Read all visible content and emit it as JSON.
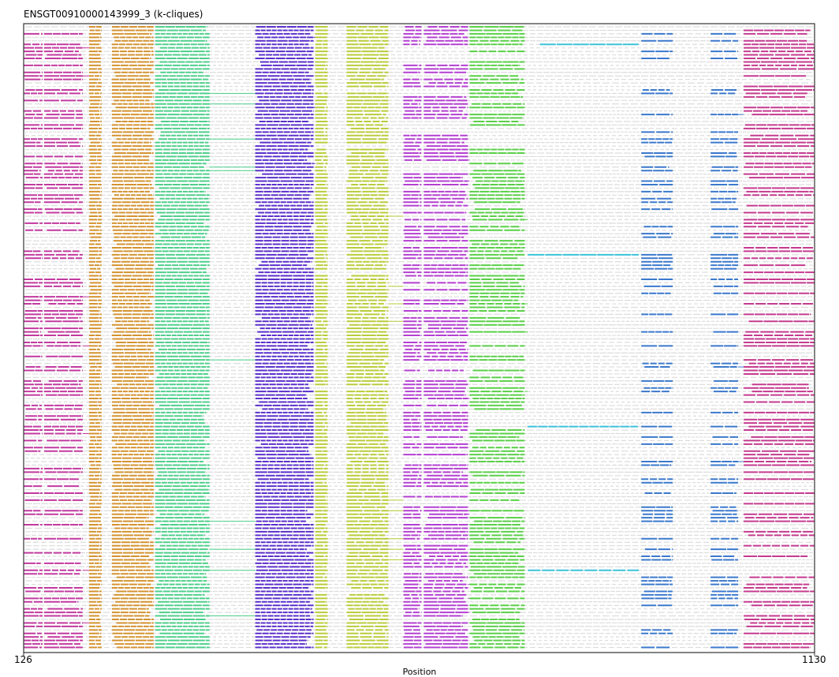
{
  "chart_data": {
    "type": "alignment-track",
    "title": "ENSGT00910000143999_3 (k-cliques)",
    "xlabel": "Position",
    "x_range": [
      126,
      1130
    ],
    "x_ticks": [
      "126",
      "1130"
    ],
    "grid": false,
    "legend": "none",
    "background_track_color": "#dcdcdc",
    "n_sequences": 178,
    "clusters": [
      {
        "start": 126,
        "end": 201,
        "color": "#c2399f",
        "coverage": 0.55,
        "blocks": [
          [
            126,
            150
          ],
          [
            152,
            201
          ]
        ]
      },
      {
        "start": 209,
        "end": 291,
        "color": "#d4922f",
        "coverage": 1.0,
        "blocks": [
          [
            209,
            225
          ],
          [
            238,
            291
          ]
        ]
      },
      {
        "start": 293,
        "end": 362,
        "color": "#4dcf8b",
        "coverage": 1.0,
        "blocks": [
          [
            293,
            362
          ]
        ]
      },
      {
        "start": 420,
        "end": 494,
        "color": "#5a2fcc",
        "coverage": 1.0,
        "blocks": [
          [
            420,
            494
          ]
        ]
      },
      {
        "start": 496,
        "end": 589,
        "color": "#b9cc3a",
        "coverage": 0.97,
        "blocks": [
          [
            496,
            512
          ],
          [
            536,
            589
          ]
        ]
      },
      {
        "start": 608,
        "end": 690,
        "color": "#b33fd1",
        "coverage": 0.7,
        "blocks": [
          [
            608,
            631
          ],
          [
            634,
            690
          ]
        ]
      },
      {
        "start": 692,
        "end": 762,
        "color": "#59cf47",
        "coverage": 0.72,
        "blocks": [
          [
            692,
            762
          ]
        ]
      },
      {
        "start": 766,
        "end": 907,
        "color": "#3ac2d9",
        "coverage": 0.02,
        "blocks": [
          [
            766,
            907
          ]
        ]
      },
      {
        "start": 910,
        "end": 1033,
        "color": "#3a78cc",
        "coverage": 0.4,
        "blocks": [
          [
            910,
            950
          ],
          [
            998,
            1033
          ]
        ]
      },
      {
        "start": 1040,
        "end": 1130,
        "color": "#c43a8f",
        "coverage": 0.56,
        "blocks": [
          [
            1040,
            1130
          ]
        ]
      }
    ]
  }
}
